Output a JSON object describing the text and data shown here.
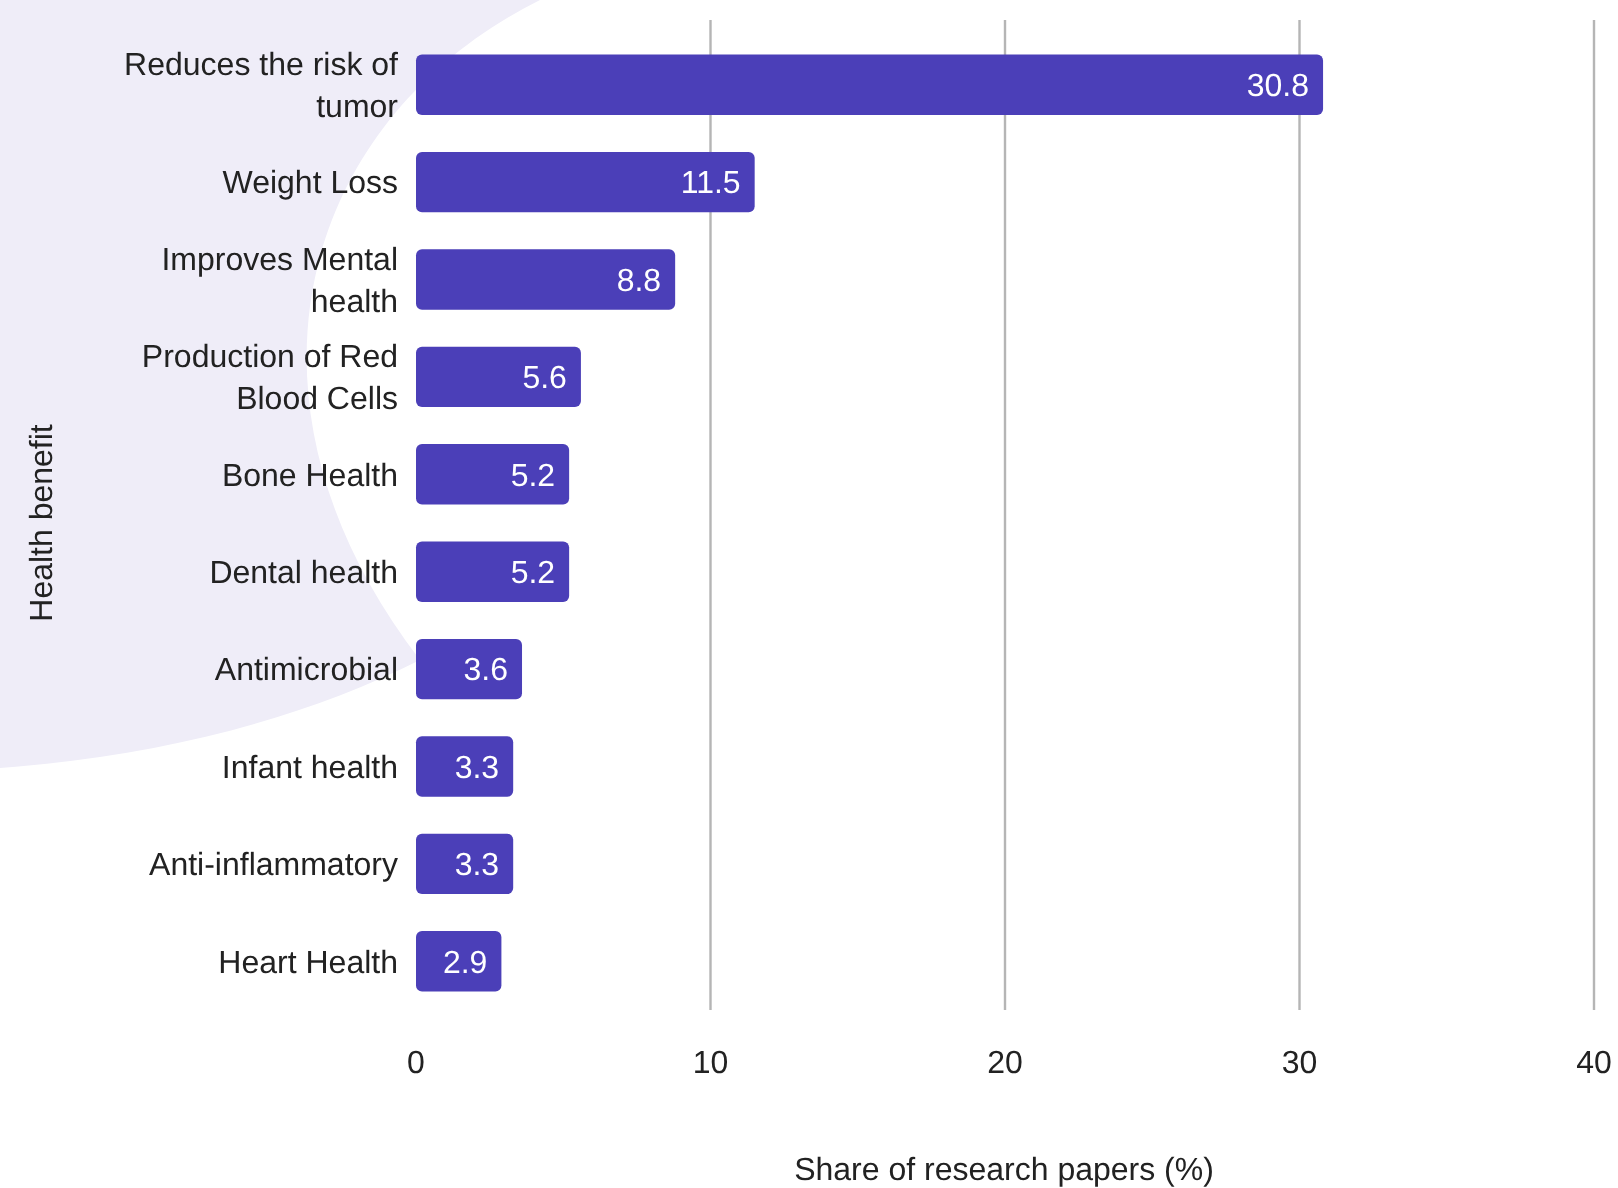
{
  "chart_data": {
    "type": "bar",
    "orientation": "horizontal",
    "xlabel": "Share of research papers (%)",
    "ylabel": "Health benefit",
    "categories": [
      "Reduces the risk of tumor",
      "Weight Loss",
      "Improves Mental health",
      "Production of Red Blood Cells",
      "Bone Health",
      "Dental health",
      "Antimicrobial",
      "Infant health",
      "Anti-inflammatory",
      "Heart Health"
    ],
    "values": [
      30.8,
      11.5,
      8.8,
      5.6,
      5.2,
      5.2,
      3.6,
      3.3,
      3.3,
      2.9
    ],
    "color": "#4b3fb8",
    "xlim": [
      0,
      40
    ],
    "xticks": [
      0,
      10,
      20,
      30,
      40
    ],
    "grid": "x",
    "data_labels": true
  }
}
